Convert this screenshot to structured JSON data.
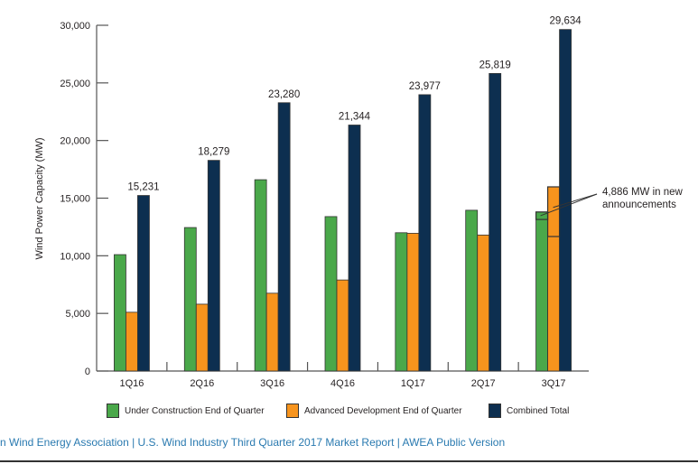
{
  "chart_data": {
    "type": "bar",
    "title": "",
    "xlabel": "",
    "ylabel": "Wind Power Capacity (MW)",
    "ylim": [
      0,
      30000
    ],
    "yticks": [
      0,
      5000,
      10000,
      15000,
      20000,
      25000,
      30000
    ],
    "ytick_labels": [
      "0",
      "5,000",
      "10,000",
      "15,000",
      "20,000",
      "25,000",
      "30,000"
    ],
    "categories": [
      "1Q16",
      "2Q16",
      "3Q16",
      "4Q16",
      "1Q17",
      "2Q17",
      "3Q17"
    ],
    "series": [
      {
        "name": "Under Construction End of Quarter",
        "color": "#4aa84a",
        "values": [
          10100,
          12450,
          16600,
          13400,
          12000,
          13950,
          13800
        ]
      },
      {
        "name": "Advanced Development End of Quarter",
        "color": "#f7941d",
        "values": [
          5100,
          5800,
          6750,
          7900,
          11950,
          11800,
          15980
        ]
      },
      {
        "name": "Combined Total",
        "color": "#0d2f50",
        "values": [
          15231,
          18279,
          23280,
          21344,
          23977,
          25819,
          29634
        ]
      }
    ],
    "data_labels": [
      "15,231",
      "18,279",
      "23,280",
      "21,344",
      "23,977",
      "25,819",
      "29,634"
    ],
    "annotation": {
      "category": "3Q17",
      "text_line1": "4,886 MW in new",
      "text_line2": "announcements",
      "under_construction_new_range": [
        13150,
        13800
      ],
      "advanced_development_new_range": [
        11670,
        15980
      ]
    },
    "legend_position": "bottom",
    "grid": false
  },
  "footer": {
    "text": "n Wind Energy Association  |  U.S. Wind Industry Third Quarter 2017 Market Report  |  AWEA Public Version"
  }
}
